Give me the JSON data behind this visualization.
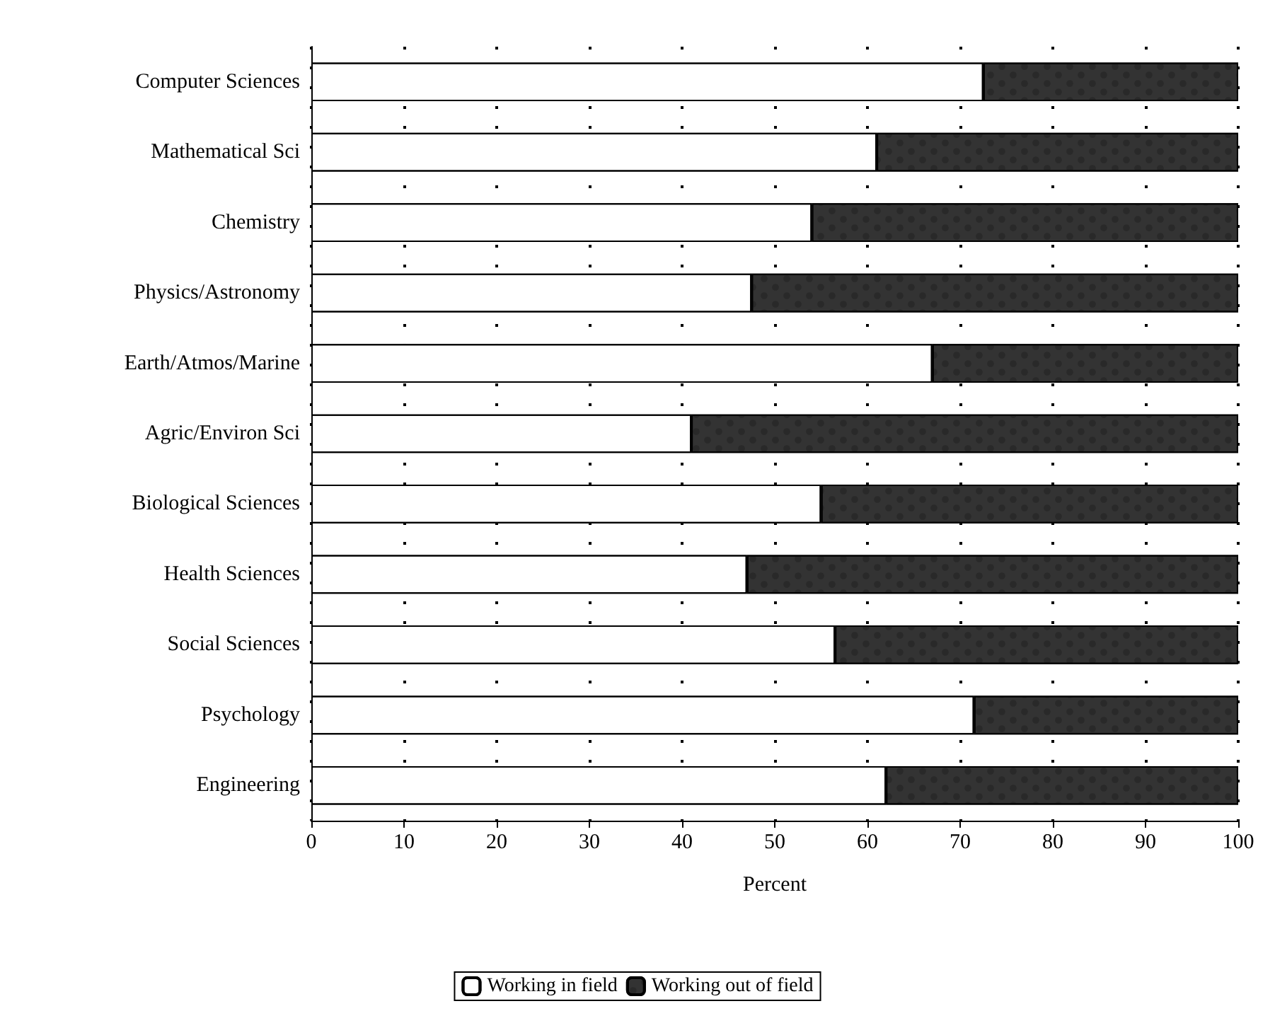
{
  "chart_data": {
    "type": "bar",
    "orientation": "horizontal",
    "stacked": true,
    "xlabel": "Percent",
    "categories": [
      "Computer Sciences",
      "Mathematical Sci",
      "Chemistry",
      "Physics/Astronomy",
      "Earth/Atmos/Marine",
      "Agric/Environ Sci",
      "Biological Sciences",
      "Health Sciences",
      "Social Sciences",
      "Psychology",
      "Engineering"
    ],
    "series": [
      {
        "name": "Working in field",
        "color": "#ffffff",
        "values": [
          72.5,
          61,
          54,
          47.5,
          67,
          41,
          55,
          47,
          56.5,
          71.5,
          62
        ]
      },
      {
        "name": "Working out of field",
        "color": "#333333",
        "values": [
          27.5,
          39,
          46,
          52.5,
          33,
          59,
          45,
          53,
          43.5,
          28.5,
          38
        ]
      }
    ],
    "xlim": [
      0,
      100
    ],
    "xticks": [
      0,
      10,
      20,
      30,
      40,
      50,
      60,
      70,
      80,
      90,
      100
    ],
    "grid": "x",
    "legend": "bottom"
  }
}
